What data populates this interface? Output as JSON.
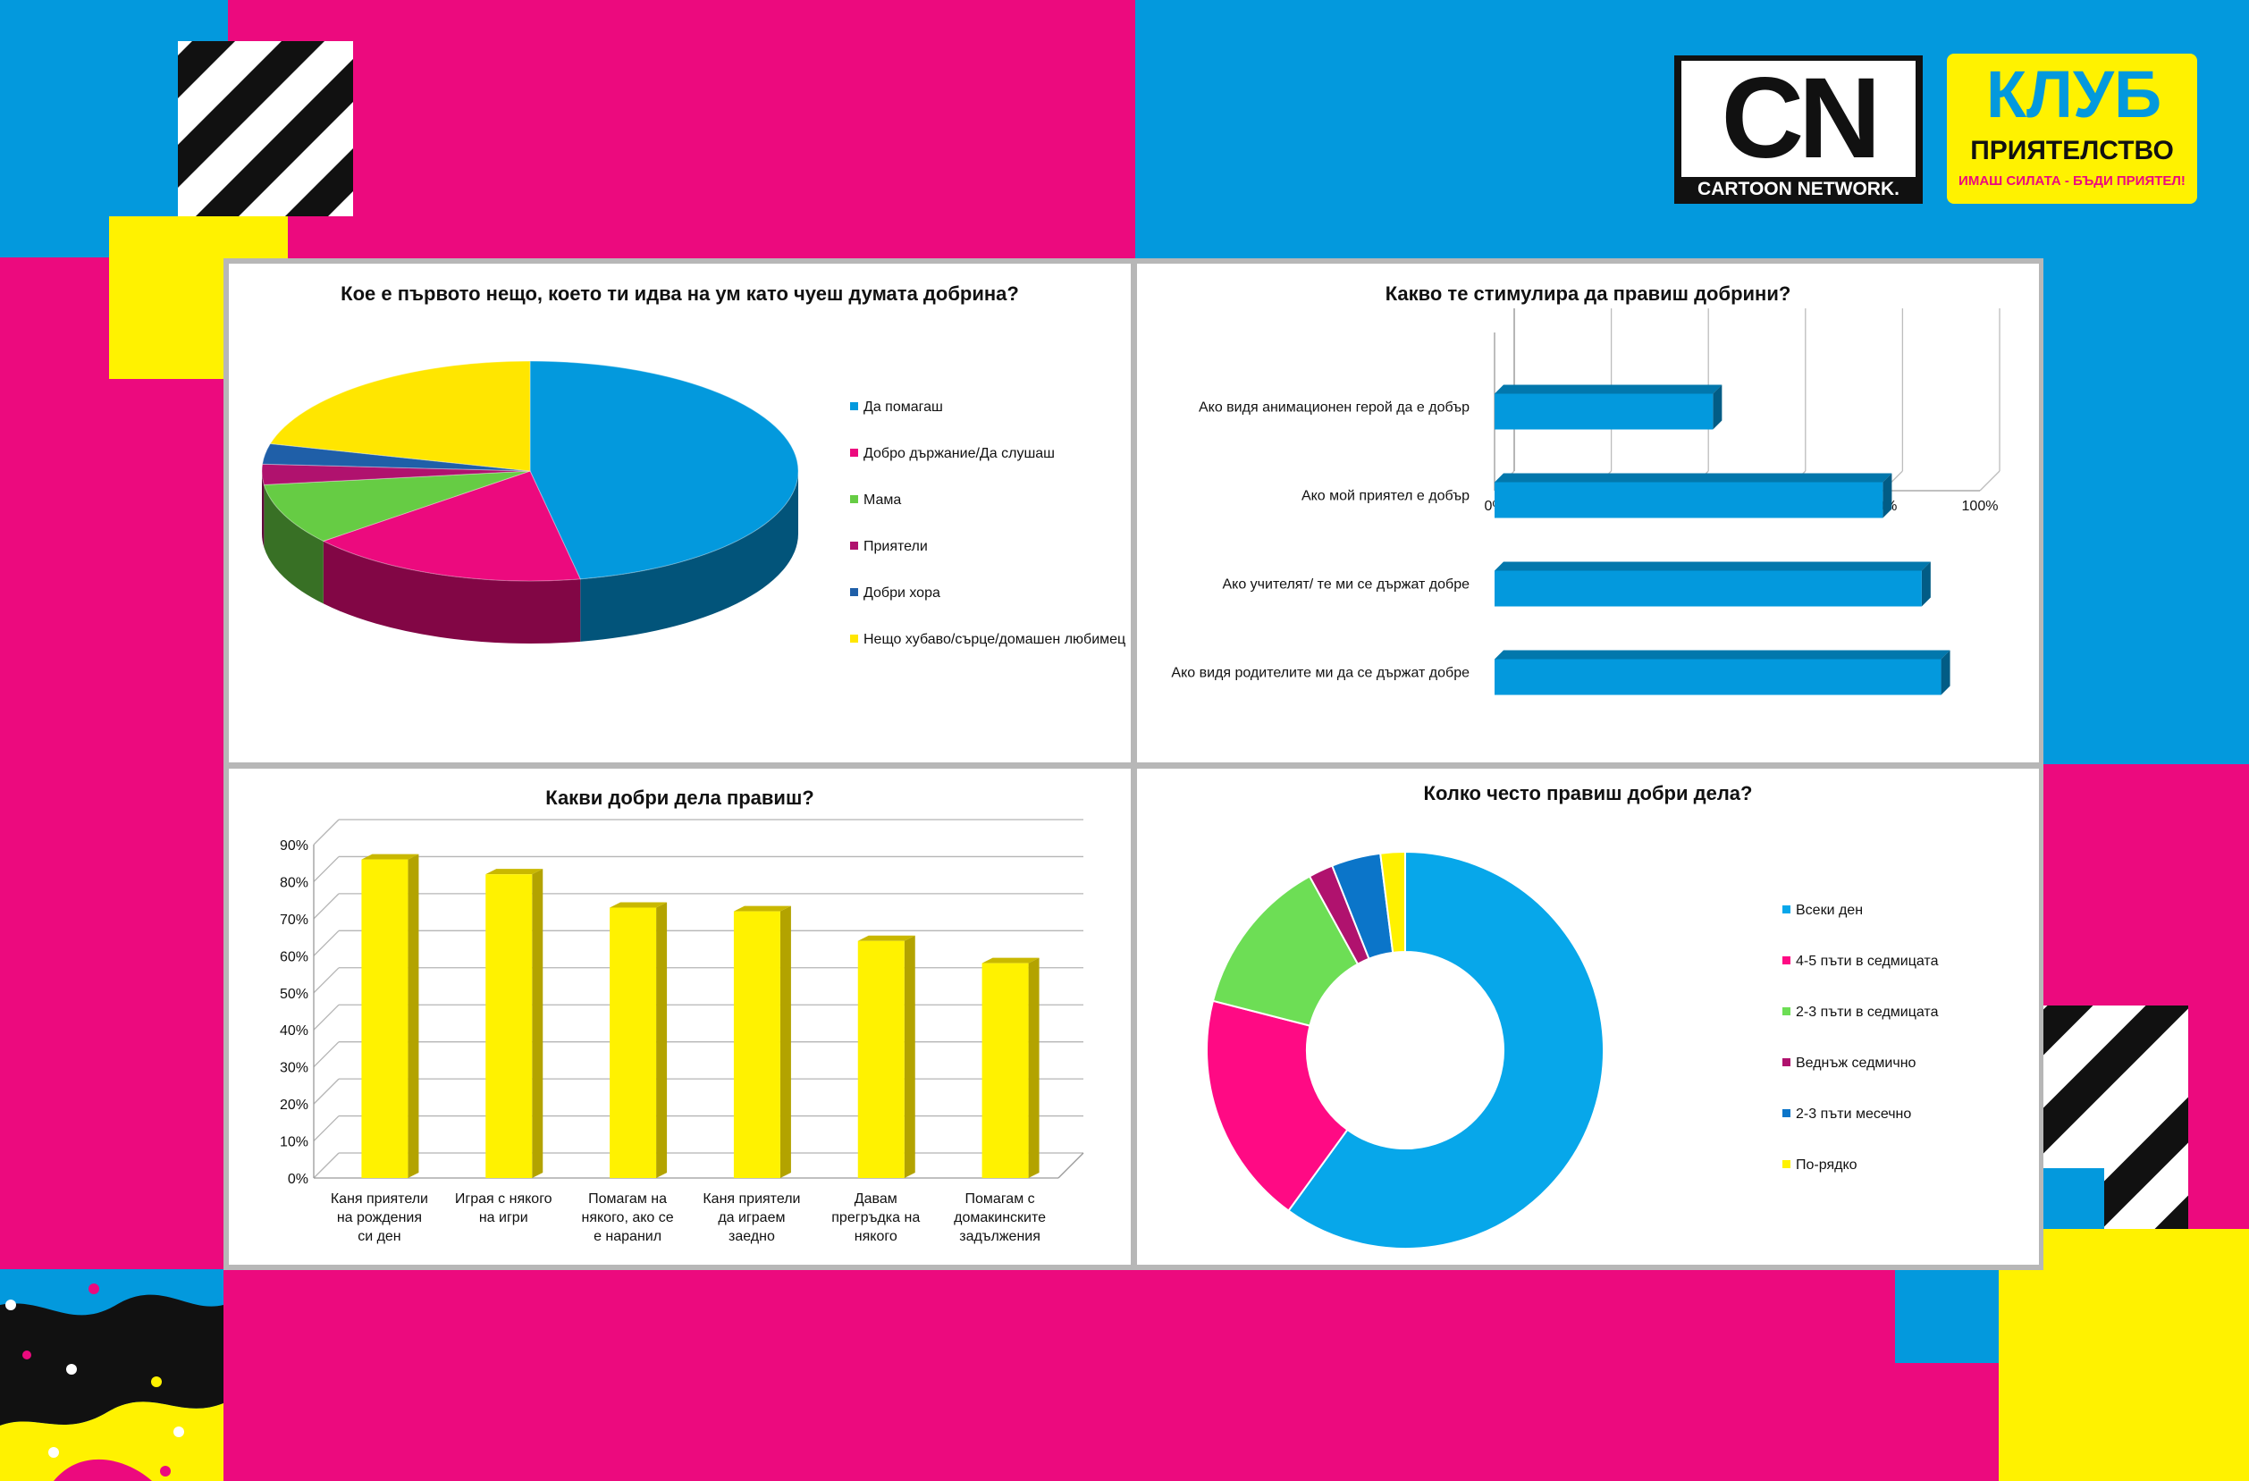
{
  "colors": {
    "pink": "#ec0a7e",
    "blue": "#0399dd",
    "yellow": "#fff200",
    "black": "#111111",
    "panel_border": "#b7b7b7"
  },
  "logo": {
    "cn_letters": "CN",
    "cn_brand": "CARTOON NETWORK.",
    "club_word": "КЛУБ",
    "club_sub": "ПРИЯТЕЛСТВО",
    "club_tagline": "ИМАШ СИЛАТА - БЪДИ ПРИЯТЕЛ!"
  },
  "chart_data": [
    {
      "type": "pie",
      "title": "Кое е първото нещо, което ти идва на ум като чуеш думата добрина?",
      "categories": [
        "Да помагаш",
        "Добро държание/Да слушаш",
        "Мама",
        "Приятели",
        "Добри хора",
        "Нещо хубаво/сърце/домашен любимец"
      ],
      "values": [
        47,
        17,
        9,
        3,
        3,
        21
      ],
      "colors": [
        "#0399dd",
        "#ec0a7e",
        "#66cc44",
        "#b0126e",
        "#1f5fa8",
        "#ffe600"
      ],
      "legend": "right"
    },
    {
      "type": "bar",
      "orientation": "horizontal",
      "title": "Какво те стимулира да правиш добрини?",
      "categories": [
        "Ако видя анимационен герой да е добър",
        "Ако мой приятел е добър",
        "Ако учителят/ те ми се държат добре",
        "Ако видя родителите ми да се държат добре"
      ],
      "values": [
        45,
        80,
        88,
        92
      ],
      "xlim": [
        0,
        100
      ],
      "xticks": [
        "0%",
        "20%",
        "40%",
        "60%",
        "80%",
        "100%"
      ],
      "grid": true,
      "color": "#0399dd"
    },
    {
      "type": "bar",
      "title": "Какви добри дела правиш?",
      "categories": [
        "Каня приятели на рождения си ден",
        "Играя с някого на игри",
        "Помагам на някого, ако се е наранил",
        "Каня приятели да играем заедно",
        "Давам прегръдка на някого",
        "Помагам с домакинските задължения"
      ],
      "category_lines": [
        [
          "Каня приятели",
          "на рождения",
          "си ден"
        ],
        [
          "Играя с някого",
          "на игри"
        ],
        [
          "Помагам на",
          "някого, ако се",
          "е наранил"
        ],
        [
          "Каня приятели",
          "да играем",
          "заедно"
        ],
        [
          "Давам",
          "прегръдка на",
          "някого"
        ],
        [
          "Помагам с",
          "домакинските",
          "задължения"
        ]
      ],
      "values": [
        86,
        82,
        73,
        72,
        64,
        58
      ],
      "ylim": [
        0,
        90
      ],
      "yticks": [
        "0%",
        "10%",
        "20%",
        "30%",
        "40%",
        "50%",
        "60%",
        "70%",
        "80%",
        "90%"
      ],
      "grid": true,
      "color": "#fff200"
    },
    {
      "type": "pie",
      "subtype": "donut",
      "title": "Колко често правиш добри дела?",
      "categories": [
        "Всеки ден",
        "4-5 пъти в седмицата",
        "2-3 пъти в седмицата",
        "Веднъж седмично",
        "2-3 пъти месечно",
        "По-рядко"
      ],
      "values": [
        60,
        19,
        13,
        2,
        4,
        2
      ],
      "colors": [
        "#07a7ea",
        "#ff0a84",
        "#6dde55",
        "#b0126e",
        "#0b75c9",
        "#fff200"
      ],
      "legend": "right"
    }
  ]
}
